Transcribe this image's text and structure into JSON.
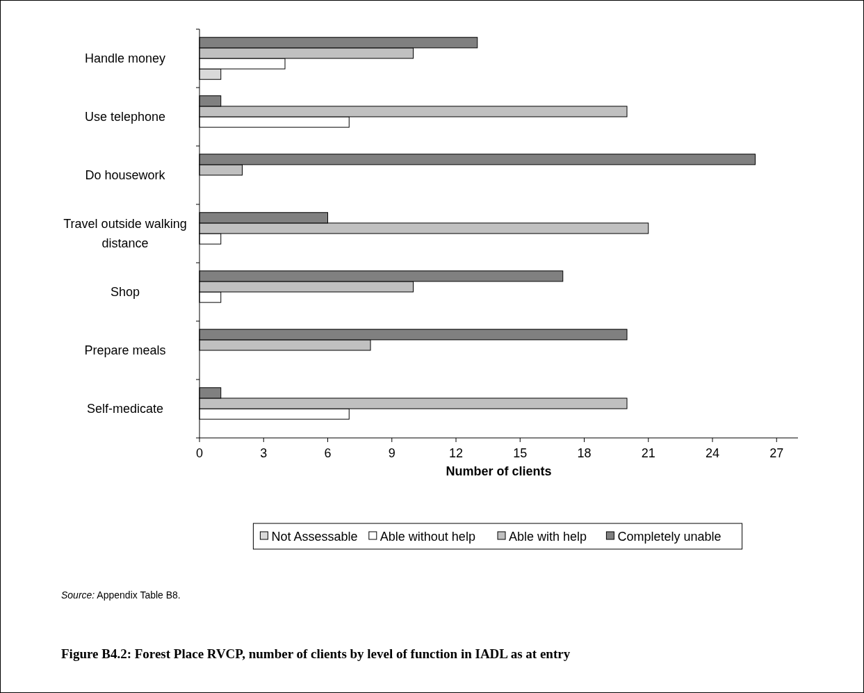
{
  "chart_data": {
    "type": "bar",
    "orientation": "horizontal",
    "title": "Figure B4.2: Forest Place RVCP, number of clients by level of function in IADL as at entry",
    "xlabel": "Number of clients",
    "categories": [
      "Handle money",
      "Use telephone",
      "Do housework",
      "Travel outside walking distance",
      "Shop",
      "Prepare meals",
      "Self-medicate"
    ],
    "series": [
      {
        "name": "Not Assessable",
        "color": "#d9d9d9",
        "values": [
          1,
          0,
          0,
          0,
          0,
          0,
          0
        ]
      },
      {
        "name": "Able without help",
        "color": "#ffffff",
        "values": [
          4,
          7,
          0,
          1,
          1,
          0,
          7
        ]
      },
      {
        "name": "Able with help",
        "color": "#c0c0c0",
        "values": [
          10,
          20,
          2,
          21,
          10,
          8,
          20
        ]
      },
      {
        "name": "Completely unable",
        "color": "#808080",
        "values": [
          13,
          1,
          26,
          6,
          17,
          20,
          1
        ]
      }
    ],
    "xlim": [
      0,
      28
    ],
    "xticks": [
      0,
      3,
      6,
      9,
      12,
      15,
      18,
      21,
      24,
      27
    ],
    "grid": false,
    "legend": "bottom",
    "annotations": [
      "Source: Appendix Table B8."
    ]
  }
}
